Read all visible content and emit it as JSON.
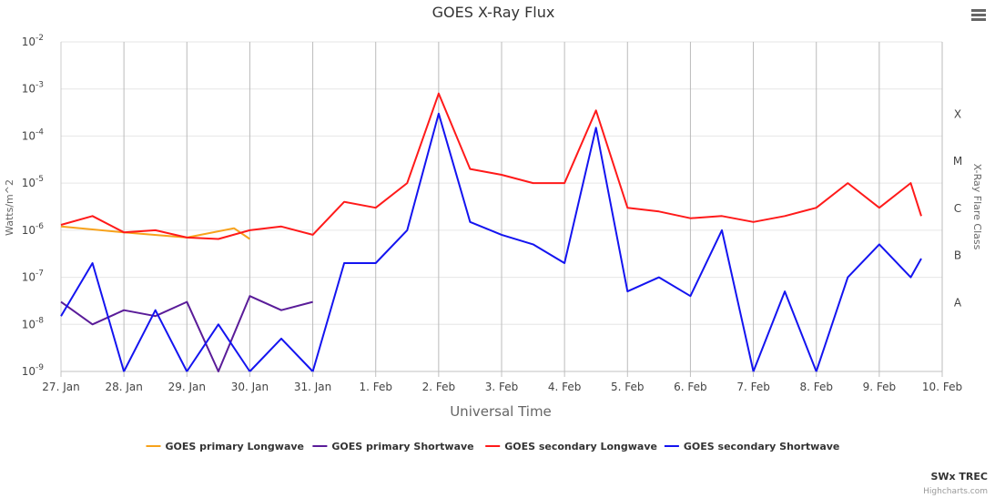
{
  "chart_data": {
    "type": "line",
    "title": "GOES X-Ray Flux",
    "xlabel": "Universal Time",
    "ylabel": "Watts/m^2",
    "y2label": "X-Ray Flare Class",
    "yscale": "log",
    "ylim": [
      1e-09,
      0.01
    ],
    "y_ticks": [
      {
        "base": "10",
        "exp": "-2"
      },
      {
        "base": "10",
        "exp": "-3"
      },
      {
        "base": "10",
        "exp": "-4"
      },
      {
        "base": "10",
        "exp": "-5"
      },
      {
        "base": "10",
        "exp": "-6"
      },
      {
        "base": "10",
        "exp": "-7"
      },
      {
        "base": "10",
        "exp": "-8"
      },
      {
        "base": "10",
        "exp": "-9"
      }
    ],
    "flare_classes": [
      {
        "label": "X",
        "value": 0.0001
      },
      {
        "label": "M",
        "value": 1e-05
      },
      {
        "label": "C",
        "value": 1e-06
      },
      {
        "label": "B",
        "value": 1e-07
      },
      {
        "label": "A",
        "value": 1e-08
      }
    ],
    "x_ticks": [
      "27. Jan",
      "28. Jan",
      "29. Jan",
      "30. Jan",
      "31. Jan",
      "1. Feb",
      "2. Feb",
      "3. Feb",
      "4. Feb",
      "5. Feb",
      "6. Feb",
      "7. Feb",
      "8. Feb",
      "9. Feb",
      "10. Feb"
    ],
    "x_unit": "day",
    "xlim": [
      "27. Jan",
      "10. Feb"
    ],
    "grid": true,
    "legend_position": "bottom",
    "series": [
      {
        "name": "GOES primary Longwave",
        "color": "#f7a21b",
        "x": [
          "27. Jan",
          "28. Jan",
          "29. Jan",
          "29. Jan 18:00",
          "30. Jan"
        ],
        "values": [
          1.2e-06,
          9e-07,
          7e-07,
          1.1e-06,
          6.5e-07
        ]
      },
      {
        "name": "GOES primary Shortwave",
        "color": "#5a1c99",
        "x": [
          "27. Jan",
          "27. Jan 12:00",
          "28. Jan",
          "28. Jan 12:00",
          "29. Jan",
          "29. Jan 12:00",
          "30. Jan",
          "30. Jan 12:00",
          "31. Jan"
        ],
        "values": [
          3e-08,
          1e-08,
          2e-08,
          1.5e-08,
          3e-08,
          1e-09,
          4e-08,
          2e-08,
          3e-08
        ]
      },
      {
        "name": "GOES secondary Longwave",
        "color": "#ff1a1a",
        "x": [
          "27. Jan",
          "27. Jan 12:00",
          "28. Jan",
          "28. Jan 12:00",
          "29. Jan",
          "29. Jan 12:00",
          "30. Jan",
          "30. Jan 12:00",
          "31. Jan",
          "31. Jan 12:00",
          "1. Feb",
          "1. Feb 12:00",
          "2. Feb",
          "2. Feb 12:00",
          "3. Feb",
          "3. Feb 12:00",
          "4. Feb",
          "4. Feb 12:00",
          "5. Feb",
          "5. Feb 12:00",
          "6. Feb",
          "6. Feb 12:00",
          "7. Feb",
          "7. Feb 12:00",
          "8. Feb",
          "8. Feb 12:00",
          "9. Feb",
          "9. Feb 12:00",
          "9. Feb 16:00"
        ],
        "values": [
          1.3e-06,
          2e-06,
          9e-07,
          1e-06,
          7e-07,
          6.5e-07,
          1e-06,
          1.2e-06,
          8e-07,
          4e-06,
          3e-06,
          1e-05,
          0.0008,
          2e-05,
          1.5e-05,
          1e-05,
          1e-05,
          0.00035,
          3e-06,
          2.5e-06,
          1.8e-06,
          2e-06,
          1.5e-06,
          2e-06,
          3e-06,
          1e-05,
          3e-06,
          1e-05,
          2e-06
        ]
      },
      {
        "name": "GOES secondary Shortwave",
        "color": "#1414f0",
        "x": [
          "27. Jan",
          "27. Jan 12:00",
          "28. Jan",
          "28. Jan 12:00",
          "29. Jan",
          "29. Jan 12:00",
          "30. Jan",
          "30. Jan 12:00",
          "31. Jan",
          "31. Jan 12:00",
          "1. Feb",
          "1. Feb 12:00",
          "2. Feb",
          "2. Feb 12:00",
          "3. Feb",
          "3. Feb 12:00",
          "4. Feb",
          "4. Feb 12:00",
          "5. Feb",
          "5. Feb 12:00",
          "6. Feb",
          "6. Feb 12:00",
          "7. Feb",
          "7. Feb 12:00",
          "8. Feb",
          "8. Feb 12:00",
          "9. Feb",
          "9. Feb 12:00",
          "9. Feb 16:00"
        ],
        "values": [
          1.5e-08,
          2e-07,
          1e-09,
          2e-08,
          1e-09,
          1e-08,
          1e-09,
          5e-09,
          1e-09,
          2e-07,
          2e-07,
          1e-06,
          0.0003,
          1.5e-06,
          8e-07,
          5e-07,
          2e-07,
          0.00015,
          5e-08,
          1e-07,
          4e-08,
          1e-06,
          1e-09,
          5e-08,
          1e-09,
          1e-07,
          5e-07,
          1e-07,
          2.5e-07
        ]
      }
    ]
  },
  "credits": {
    "brand": "SWx TREC",
    "source": "Highcharts.com"
  },
  "menu_icon": "hamburger-menu-icon"
}
